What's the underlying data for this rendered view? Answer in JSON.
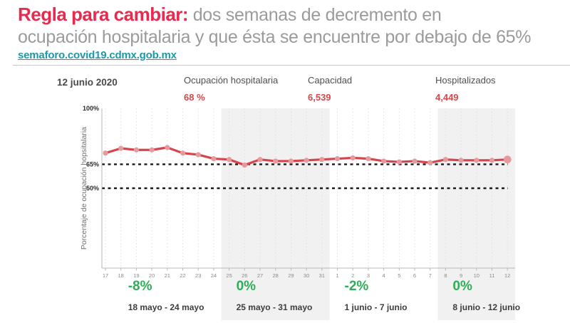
{
  "header": {
    "title_highlight": "Regla para cambiar:",
    "title_rest": " dos semanas de decremento en",
    "title_line2": "ocupación hospitalaria y que ésta se encuentre por debajo de 65%",
    "link": "semaforo.covid19.cdmx.gob.mx"
  },
  "stats": {
    "date": "12 junio 2020",
    "items": [
      {
        "label": "Ocupación hospitalaria",
        "value": "68 %"
      },
      {
        "label": "Capacidad",
        "value": "6,539"
      },
      {
        "label": "Hospitalizados",
        "value": "4,449"
      }
    ]
  },
  "chart_data": {
    "type": "line",
    "title": "",
    "xlabel": "",
    "ylabel": "Porcentaje de ocupación hopsitalaria",
    "ylim": [
      0,
      100
    ],
    "x_labels": [
      "17",
      "18",
      "19",
      "20",
      "21",
      "22",
      "23",
      "24",
      "25",
      "26",
      "27",
      "28",
      "29",
      "30",
      "31",
      "1",
      "2",
      "3",
      "4",
      "5",
      "6",
      "7",
      "8",
      "9",
      "10",
      "11",
      "12"
    ],
    "values": [
      72,
      75,
      74,
      74,
      75.5,
      72,
      71,
      68.5,
      68,
      64.5,
      68,
      67,
      67,
      67.5,
      68,
      68.5,
      69,
      68.5,
      67,
      66.5,
      67,
      66,
      68,
      67.5,
      67.5,
      67.5,
      68
    ],
    "yticks": [
      {
        "value": 100,
        "label": "100%"
      },
      {
        "value": 65,
        "label": "65%"
      },
      {
        "value": 50,
        "label": "50%"
      }
    ],
    "reference_values": [
      65,
      50
    ],
    "grid": "vertical-dotted",
    "legend": "none",
    "colors": {
      "line": "#d6444e",
      "marker": "#e79a9d",
      "reference_line": "#1a1a1a",
      "shaded_region": "#f1f1f1",
      "gridline": "#e0e0e0",
      "axis": "#b8b8b8",
      "tick_label": "#8a8a8a",
      "ytick_label": "#2b2b2b",
      "change": "#2dae58",
      "range_label": "#3d3d3d",
      "ylabel": "#707070"
    },
    "weeks": [
      {
        "change": "-8%",
        "range": "18 mayo - 24 mayo",
        "start_index": 1,
        "end_index": 7,
        "shaded": false
      },
      {
        "change": "0%",
        "range": "25 mayo - 31 mayo",
        "start_index": 8,
        "end_index": 14,
        "shaded": true
      },
      {
        "change": "-2%",
        "range": "1 junio - 7 junio",
        "start_index": 15,
        "end_index": 21,
        "shaded": false
      },
      {
        "change": "0%",
        "range": "8 junio - 12 junio",
        "start_index": 22,
        "end_index": 26,
        "shaded": true
      }
    ]
  }
}
